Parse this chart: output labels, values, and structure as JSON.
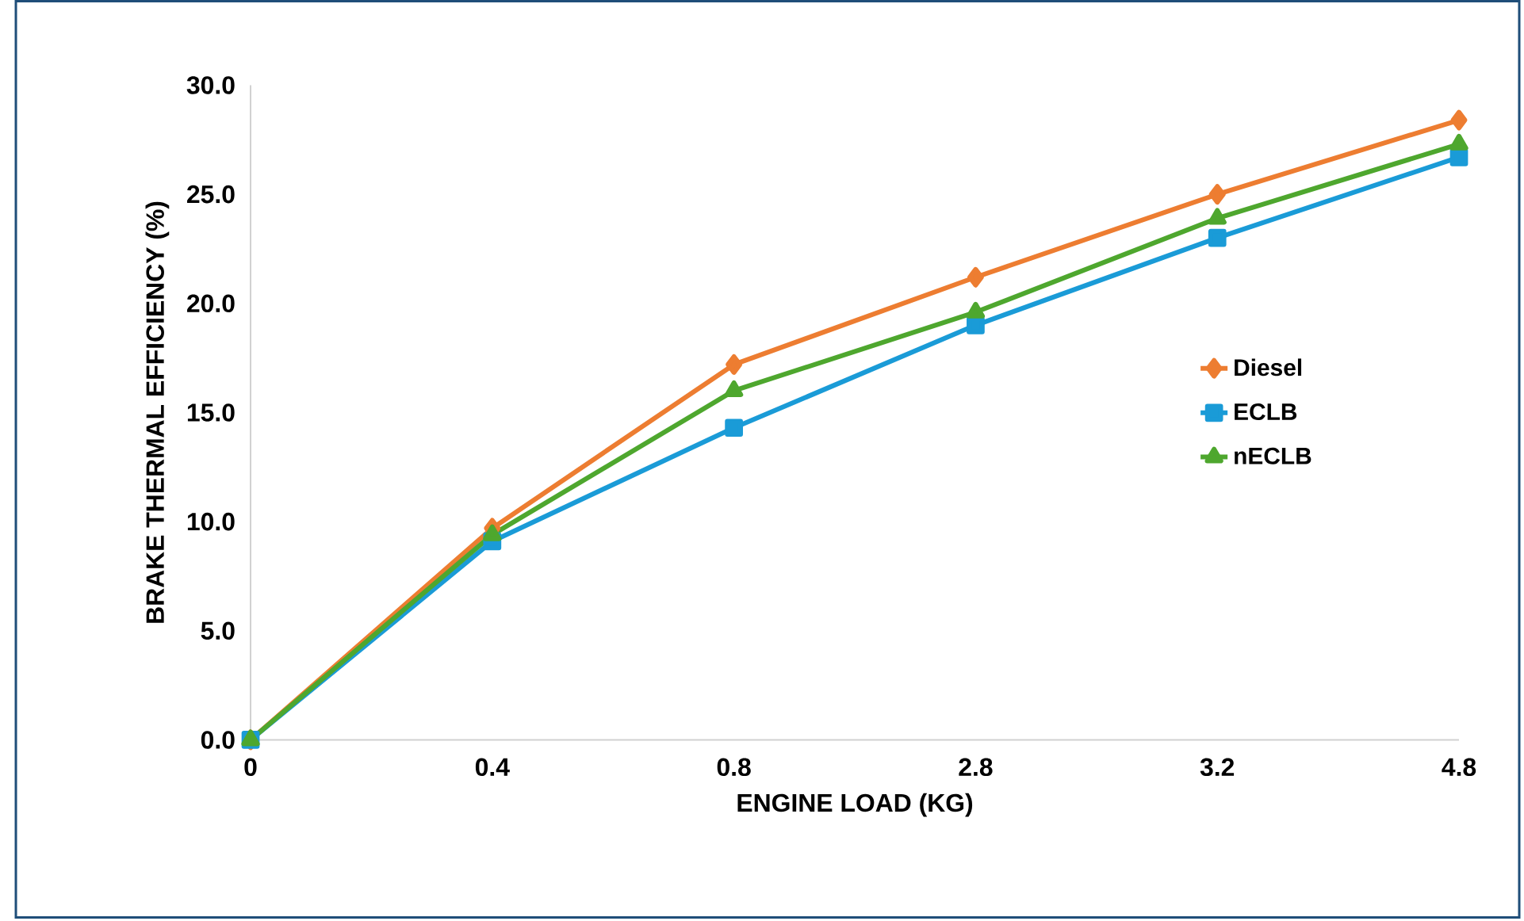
{
  "chart_data": {
    "type": "line",
    "xlabel": "ENGINE LOAD (KG)",
    "ylabel": "BRAKE THERMAL EFFICIENCY (%)",
    "categories": [
      "0",
      "0.4",
      "0.8",
      "2.8",
      "3.2",
      "4.8"
    ],
    "series": [
      {
        "name": "Diesel",
        "color": "#ed7d31",
        "marker": "diamond",
        "values": [
          0,
          9.7,
          17.2,
          21.2,
          25.0,
          28.4
        ]
      },
      {
        "name": "ECLB",
        "color": "#1a9bd7",
        "marker": "square",
        "values": [
          0,
          9.1,
          14.3,
          19.0,
          23.0,
          26.7
        ]
      },
      {
        "name": "nECLB",
        "color": "#4ea72e",
        "marker": "triangle",
        "values": [
          0,
          9.4,
          16.0,
          19.6,
          23.9,
          27.3
        ]
      }
    ],
    "ylim": [
      0,
      30
    ],
    "yticks": [
      {
        "value": 0,
        "label": "0.0"
      },
      {
        "value": 5,
        "label": "5.0"
      },
      {
        "value": 10,
        "label": "10.0"
      },
      {
        "value": 15,
        "label": "15.0"
      },
      {
        "value": 20,
        "label": "20.0"
      },
      {
        "value": 25,
        "label": "25.0"
      },
      {
        "value": 30,
        "label": "30.0"
      }
    ],
    "grid": false,
    "legend": "right",
    "line_style": "solid"
  }
}
